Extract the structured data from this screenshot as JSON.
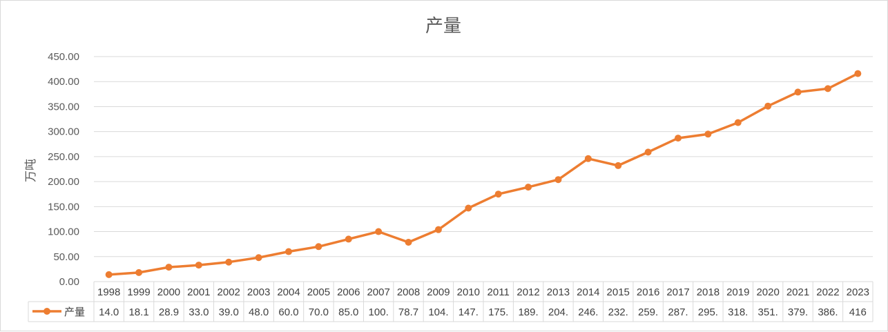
{
  "chart_data": {
    "type": "line",
    "title": "产量",
    "ylabel": "万吨",
    "xlabel": "",
    "ylim": [
      0,
      450
    ],
    "y_ticks": [
      "0.00",
      "50.00",
      "100.00",
      "150.00",
      "200.00",
      "250.00",
      "300.00",
      "350.00",
      "400.00",
      "450.00"
    ],
    "grid": true,
    "legend": "data-table-left",
    "categories": [
      "1998",
      "1999",
      "2000",
      "2001",
      "2002",
      "2003",
      "2004",
      "2005",
      "2006",
      "2007",
      "2008",
      "2009",
      "2010",
      "2011",
      "2012",
      "2013",
      "2014",
      "2015",
      "2016",
      "2017",
      "2018",
      "2019",
      "2020",
      "2021",
      "2022",
      "2023"
    ],
    "series": [
      {
        "name": "产量",
        "color": "#ED7D31",
        "values": [
          14.0,
          18.1,
          28.9,
          33.0,
          39.0,
          48.0,
          60.0,
          70.0,
          85.0,
          100.0,
          78.7,
          104.0,
          147.0,
          175.0,
          189.0,
          204.0,
          246.0,
          232.0,
          259.0,
          287.0,
          295.0,
          318.0,
          351.0,
          379.0,
          386.0,
          416.0
        ],
        "table_labels": [
          "14.0",
          "18.1",
          "28.9",
          "33.0",
          "39.0",
          "48.0",
          "60.0",
          "70.0",
          "85.0",
          "100.",
          "78.7",
          "104.",
          "147.",
          "175.",
          "189.",
          "204.",
          "246.",
          "232.",
          "259.",
          "287.",
          "295.",
          "318.",
          "351.",
          "379.",
          "386.",
          "416"
        ]
      }
    ]
  }
}
